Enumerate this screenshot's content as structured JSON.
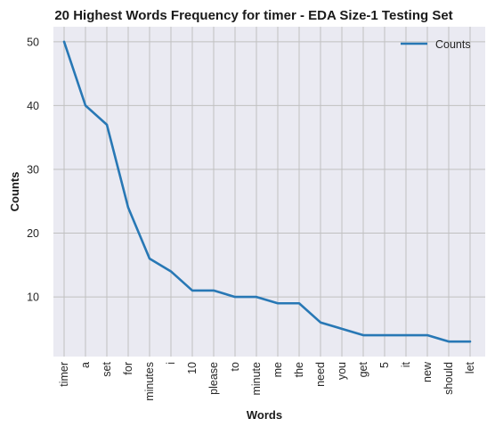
{
  "chart_data": {
    "type": "line",
    "title": "20 Highest Words Frequency for timer - EDA Size-1 Testing Set",
    "xlabel": "Words",
    "ylabel": "Counts",
    "categories": [
      "timer",
      "a",
      "set",
      "for",
      "minutes",
      "i",
      "10",
      "please",
      "to",
      "minute",
      "me",
      "the",
      "need",
      "you",
      "get",
      "5",
      "it",
      "new",
      "should",
      "let"
    ],
    "series": [
      {
        "name": "Counts",
        "values": [
          50,
          40,
          37,
          24,
          16,
          14,
          11,
          11,
          10,
          10,
          9,
          9,
          6,
          5,
          4,
          4,
          4,
          4,
          3,
          3
        ],
        "color": "#2878b5"
      }
    ],
    "yticks": [
      10,
      20,
      30,
      40,
      50
    ],
    "ylim": [
      0.65,
      52.35
    ],
    "grid": true,
    "legend_position": "top-right",
    "background_color": "#eaeaf2",
    "grid_color": "#c0c0c0"
  }
}
